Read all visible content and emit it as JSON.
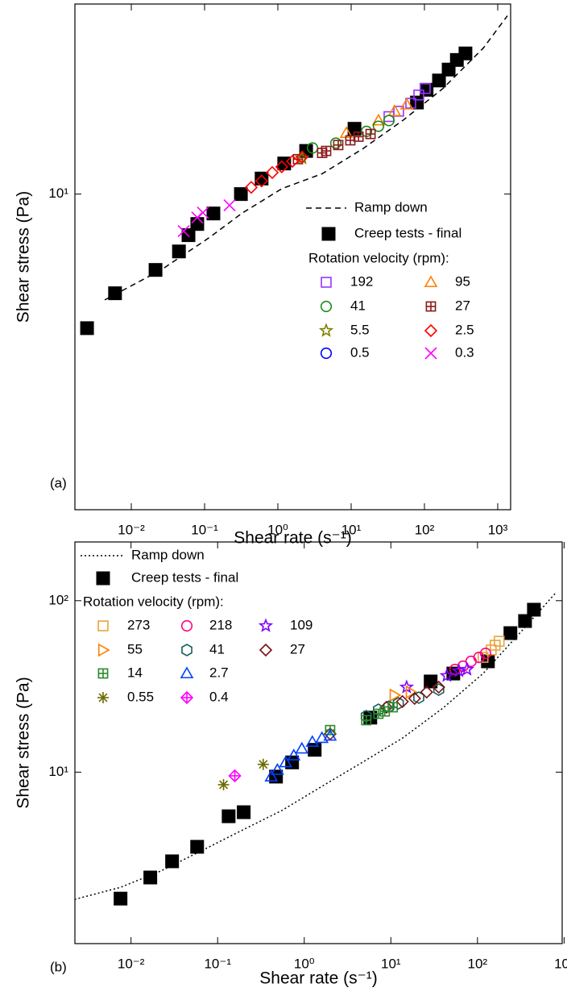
{
  "chart_data": [
    {
      "type": "scatter",
      "panel_label": "(a)",
      "xlabel": "Shear rate (s⁻¹)",
      "ylabel": "Shear stress (Pa)",
      "log_x": true,
      "log_y": true,
      "xlim": [
        0.0017,
        1500
      ],
      "ylim": [
        1,
        40
      ],
      "xticks": [
        {
          "value": 0.01,
          "label": "10⁻²"
        },
        {
          "value": 0.1,
          "label": "10⁻¹"
        },
        {
          "value": 1,
          "label": "10⁰"
        },
        {
          "value": 10,
          "label": "10¹"
        },
        {
          "value": 100,
          "label": "10²"
        },
        {
          "value": 1000,
          "label": "10³"
        }
      ],
      "yticks": [
        {
          "value": 10,
          "label": "10¹"
        }
      ],
      "legend_title": "Rotation velocity (rpm):",
      "series": [
        {
          "name": "Ramp down",
          "kind": "line",
          "dash": "dashed",
          "color": "#000000",
          "x": [
            0.00434,
            0.0255,
            0.116,
            0.32,
            1.13,
            4.02,
            14.3,
            50.5,
            179,
            634,
            1355
          ],
          "y": [
            4.62,
            5.75,
            7.28,
            8.68,
            10.4,
            11.6,
            13.9,
            17.1,
            21.6,
            29.0,
            36.7
          ]
        },
        {
          "name": "Creep tests - final",
          "marker": "filled-square",
          "color": "#000000",
          "x": [
            0.00249,
            0.006,
            0.0214,
            0.0447,
            0.0603,
            0.0795,
            0.132,
            0.313,
            0.6,
            1.22,
            2.43,
            11.1,
            79,
            107,
            158,
            214,
            277,
            363
          ],
          "y": [
            3.76,
            4.85,
            5.75,
            6.58,
            7.41,
            8.04,
            8.68,
            10.0,
            11.2,
            12.5,
            13.7,
            16.1,
            19.5,
            21.4,
            22.9,
            24.8,
            26.6,
            27.9
          ]
        },
        {
          "name": "192",
          "marker": "square",
          "color": "#9933ff",
          "x": [
            32.8,
            44.5,
            65,
            83.8,
            102.6
          ],
          "y": [
            17.6,
            18.3,
            19.4,
            20.6,
            21.6
          ]
        },
        {
          "name": "95",
          "marker": "triangle",
          "color": "#ff8000",
          "x": [
            8.6,
            23.6,
            39.2,
            57.3
          ],
          "y": [
            15.6,
            17.1,
            18.3,
            19.2
          ]
        },
        {
          "name": "41",
          "marker": "circle",
          "color": "#1a8a1a",
          "x": [
            2.97,
            6.18,
            16.2,
            23.6,
            32.8
          ],
          "y": [
            14.0,
            14.5,
            15.8,
            16.4,
            17.1
          ]
        },
        {
          "name": "27",
          "marker": "square-plus",
          "color": "#8b1a1a",
          "x": [
            1.88,
            4.02,
            4.56,
            6.67,
            9.75,
            12.6,
            18.4
          ],
          "y": [
            12.9,
            13.5,
            13.7,
            14.3,
            14.8,
            15.2,
            15.5
          ]
        },
        {
          "name": "5.5",
          "marker": "star",
          "color": "#808000",
          "x": [
            2.14
          ],
          "y": [
            13.0
          ]
        },
        {
          "name": "2.5",
          "marker": "diamond",
          "color": "#ff0000",
          "x": [
            0.433,
            0.6,
            0.838,
            1.13,
            1.58,
            2.14
          ],
          "y": [
            10.5,
            11.0,
            11.7,
            12.2,
            12.7,
            13.1
          ]
        },
        {
          "name": "0.5",
          "marker": "circle",
          "color": "#0000ff",
          "x": [],
          "y": []
        },
        {
          "name": "0.3",
          "marker": "x",
          "color": "#ff00ff",
          "x": [
            0.0518,
            0.0795,
            0.095,
            0.219
          ],
          "y": [
            7.63,
            8.43,
            8.73,
            9.21
          ]
        }
      ]
    },
    {
      "type": "scatter",
      "panel_label": "(b)",
      "xlabel": "Shear rate (s⁻¹)",
      "ylabel": "Shear stress (Pa)",
      "log_x": true,
      "log_y": true,
      "xlim": [
        0.00225,
        950
      ],
      "ylim": [
        1,
        220
      ],
      "xticks": [
        {
          "value": 0.01,
          "label": "10⁻²"
        },
        {
          "value": 0.1,
          "label": "10⁻¹"
        },
        {
          "value": 1,
          "label": "10⁰"
        },
        {
          "value": 10,
          "label": "10¹"
        },
        {
          "value": 100,
          "label": "10²"
        },
        {
          "value": 1000,
          "label": "10³"
        }
      ],
      "yticks": [
        {
          "value": 10,
          "label": "10¹"
        },
        {
          "value": 100,
          "label": "10²"
        }
      ],
      "legend_title": "Rotation velocity (rpm):",
      "series": [
        {
          "name": "Ramp down",
          "kind": "line",
          "dash": "dotted",
          "color": "#000000",
          "x": [
            0.00223,
            0.00757,
            0.0221,
            0.0644,
            0.188,
            0.55,
            1.6,
            4.68,
            13.6,
            39.8,
            116,
            339,
            798
          ],
          "y": [
            1.81,
            2.13,
            2.65,
            3.47,
            4.56,
            5.97,
            8.26,
            11.4,
            15.8,
            23.6,
            37.6,
            68.3,
            111
          ]
        },
        {
          "name": "Creep tests - final",
          "marker": "filled-square",
          "color": "#000000",
          "x": [
            0.00757,
            0.0167,
            0.0298,
            0.058,
            0.134,
            0.2,
            0.472,
            0.724,
            1.32,
            5.79,
            28.8,
            52.6,
            132,
            240,
            354,
            448
          ],
          "y": [
            1.83,
            2.43,
            3.02,
            3.67,
            5.53,
            5.84,
            9.42,
            11.4,
            13.5,
            20.8,
            33.8,
            37.6,
            44.3,
            64.7,
            76.1,
            88.6
          ]
        },
        {
          "name": "273",
          "marker": "square",
          "color": "#e8a33d",
          "x": [
            116,
            144,
            160,
            178
          ],
          "y": [
            46.7,
            51.6,
            55.0,
            58.0
          ]
        },
        {
          "name": "218",
          "marker": "circle",
          "color": "#ff0080",
          "x": [
            54.9,
            68.1,
            84.3,
            104,
            124
          ],
          "y": [
            39.7,
            41.5,
            44.3,
            46.7,
            49.3
          ]
        },
        {
          "name": "109",
          "marker": "star",
          "color": "#8000ff",
          "x": [
            15.2,
            44.3,
            61.1,
            75.7
          ],
          "y": [
            31.3,
            36.5,
            38.9,
            39.7
          ]
        },
        {
          "name": "55",
          "marker": "triangle-right",
          "color": "#ff8000",
          "x": [
            11.0,
            16.9
          ],
          "y": [
            28.1,
            29.3
          ]
        },
        {
          "name": "41",
          "marker": "hexagon",
          "color": "#1a5e5e",
          "x": [
            5.2,
            7.18,
            9.48,
            12.2,
            21.0,
            35.7
          ],
          "y": [
            21.2,
            23.1,
            24.1,
            25.2,
            27.2,
            30.3
          ]
        },
        {
          "name": "27",
          "marker": "diamond",
          "color": "#7a1010",
          "x": [
            1.99,
            8.89,
            13.6,
            18.8,
            25.9,
            35.7
          ],
          "y": [
            16.7,
            23.9,
            25.8,
            26.9,
            29.3,
            31.3
          ]
        },
        {
          "name": "14",
          "marker": "square-plus",
          "color": "#2a8a2a",
          "x": [
            1.99,
            5.2,
            7.18,
            8.51,
            10.5
          ],
          "y": [
            17.6,
            20.1,
            21.9,
            22.6,
            23.9
          ]
        },
        {
          "name": "2.7",
          "marker": "triangle",
          "color": "#0040ff",
          "x": [
            0.416,
            0.49,
            0.61,
            0.757,
            0.938,
            1.24,
            1.6,
            1.99
          ],
          "y": [
            9.42,
            10.3,
            11.4,
            12.5,
            13.7,
            15.0,
            15.8,
            16.3
          ]
        },
        {
          "name": "0.55",
          "marker": "asterisk",
          "color": "#6b6b00",
          "x": [
            0.117,
            0.336
          ],
          "y": [
            8.45,
            11.1
          ]
        },
        {
          "name": "0.4",
          "marker": "diamond-plus",
          "color": "#ff00ff",
          "x": [
            0.158
          ],
          "y": [
            9.52
          ]
        }
      ]
    }
  ]
}
